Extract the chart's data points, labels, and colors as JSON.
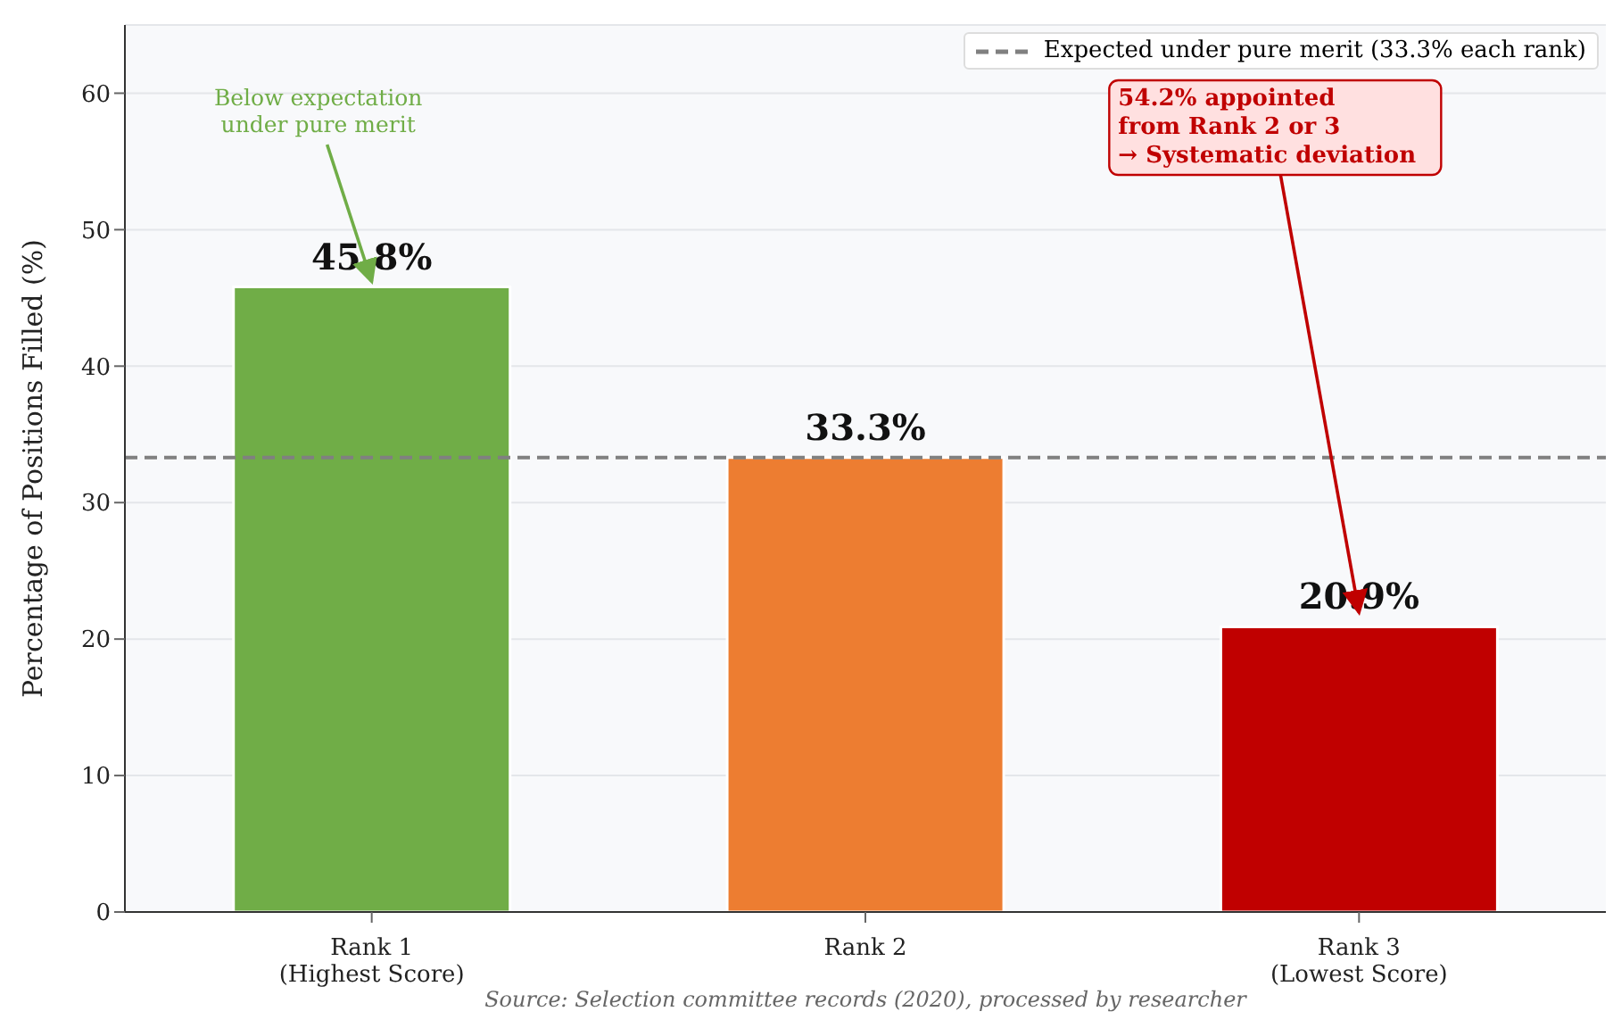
{
  "chart_data": {
    "type": "bar",
    "ylabel": "Percentage of Positions Filled (%)",
    "categories": [
      "Rank 1\n(Highest Score)",
      "Rank 2",
      "Rank 3\n(Lowest Score)"
    ],
    "values": [
      45.8,
      33.3,
      20.9
    ],
    "colors": [
      "#70ad47",
      "#ed7d31",
      "#c00000"
    ],
    "value_labels": [
      "45.8%",
      "33.3%",
      "20.9%"
    ],
    "ylim": [
      0,
      65
    ],
    "yticks": [
      0,
      10,
      20,
      30,
      40,
      50,
      60
    ],
    "grid": "y",
    "legend": "top right",
    "ref_lines": [
      {
        "axis": "y",
        "value": 33.3,
        "label": "Expected under pure merit (33.3% each rank)",
        "color": "#808080",
        "line_style": "dashed"
      }
    ],
    "annotations": [
      {
        "text": "Below expectation\nunder pure merit",
        "x": "Rank 1\n(Highest Score)",
        "y": 45.8
      },
      {
        "text": "54.2% appointed\nfrom Rank 2 or 3\n→ Systematic deviation",
        "x": "Rank 3\n(Lowest Score)",
        "y": 20.9
      },
      "Source: Selection committee records (2020), processed by researcher"
    ]
  }
}
